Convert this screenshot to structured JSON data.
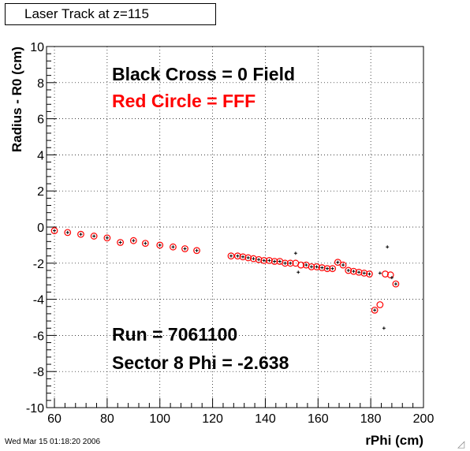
{
  "title": "Laser Track at z=115",
  "timestamp": "Wed Mar 15 01:18:20 2006",
  "resize_icon": "resize-grip-icon",
  "chart_data": {
    "type": "scatter",
    "title": "Laser Track at z=115",
    "xlabel": "rPhi (cm)",
    "ylabel": "Radius - R0 (cm)",
    "xlim": [
      57,
      200
    ],
    "ylim": [
      -10,
      10
    ],
    "xticks": [
      60,
      80,
      100,
      120,
      140,
      160,
      180,
      200
    ],
    "yticks": [
      -10,
      -8,
      -6,
      -4,
      -2,
      0,
      2,
      4,
      6,
      8,
      10
    ],
    "grid": true,
    "annotations": [
      {
        "text": "Black Cross  = 0 Field",
        "color": "#000000"
      },
      {
        "text": "Red Circle = FFF",
        "color": "#ff0000"
      },
      {
        "text": "Run = 7061100",
        "color": "#000000"
      },
      {
        "text": "Sector 8 Phi = -2.638",
        "color": "#000000"
      }
    ],
    "series": [
      {
        "marker": "circle",
        "color": "#ff0000",
        "x": [
          60,
          65,
          70,
          75,
          80,
          85,
          90,
          94.5,
          100,
          105,
          109.5,
          114,
          127,
          129.5,
          131.5,
          133.5,
          135.5,
          137.5,
          139.5,
          141.5,
          143.5,
          145.5,
          147.5,
          149.5,
          151.5,
          153.5,
          155.5,
          157.5,
          159.5,
          161.5,
          163.5,
          165.5,
          167.5,
          169.5,
          171.5,
          173.5,
          175.5,
          177.5,
          179.5,
          181.5,
          183.5,
          185.5,
          187.5,
          189.5
        ],
        "y": [
          -0.2,
          -0.3,
          -0.4,
          -0.5,
          -0.6,
          -0.85,
          -0.75,
          -0.9,
          -1.0,
          -1.1,
          -1.2,
          -1.3,
          -1.6,
          -1.6,
          -1.65,
          -1.7,
          -1.75,
          -1.8,
          -1.85,
          -1.85,
          -1.9,
          -1.9,
          -2.0,
          -2.0,
          -2.0,
          -2.1,
          -2.1,
          -2.2,
          -2.2,
          -2.25,
          -2.3,
          -2.3,
          -1.95,
          -2.1,
          -2.4,
          -2.45,
          -2.5,
          -2.55,
          -2.6,
          -4.6,
          -4.3,
          -2.6,
          -2.65,
          -3.15
        ]
      },
      {
        "marker": "cross",
        "color": "#000000",
        "x": [
          60,
          65,
          70,
          75,
          80,
          85,
          90,
          94.5,
          100,
          105,
          109.5,
          114,
          127,
          129.5,
          131.5,
          133.5,
          135.5,
          137.5,
          139.5,
          141.5,
          143.5,
          145.5,
          147.5,
          149.5,
          151.5,
          152.5,
          155.5,
          157.5,
          159.5,
          161.5,
          163.5,
          165.5,
          167.5,
          169.5,
          171.5,
          173.5,
          175.5,
          177.5,
          179.5,
          181.5,
          183.5,
          185,
          186.3,
          188,
          189.5
        ],
        "y": [
          -0.2,
          -0.3,
          -0.4,
          -0.5,
          -0.6,
          -0.85,
          -0.75,
          -0.9,
          -1.0,
          -1.1,
          -1.2,
          -1.3,
          -1.6,
          -1.6,
          -1.65,
          -1.7,
          -1.75,
          -1.8,
          -1.85,
          -1.85,
          -1.9,
          -1.9,
          -2.0,
          -2.0,
          -1.45,
          -2.5,
          -2.1,
          -2.2,
          -2.2,
          -2.25,
          -2.3,
          -2.3,
          -1.95,
          -2.1,
          -2.4,
          -2.45,
          -2.5,
          -2.55,
          -2.6,
          -4.6,
          -2.55,
          -5.6,
          -1.1,
          -2.8,
          -3.15
        ]
      }
    ]
  }
}
